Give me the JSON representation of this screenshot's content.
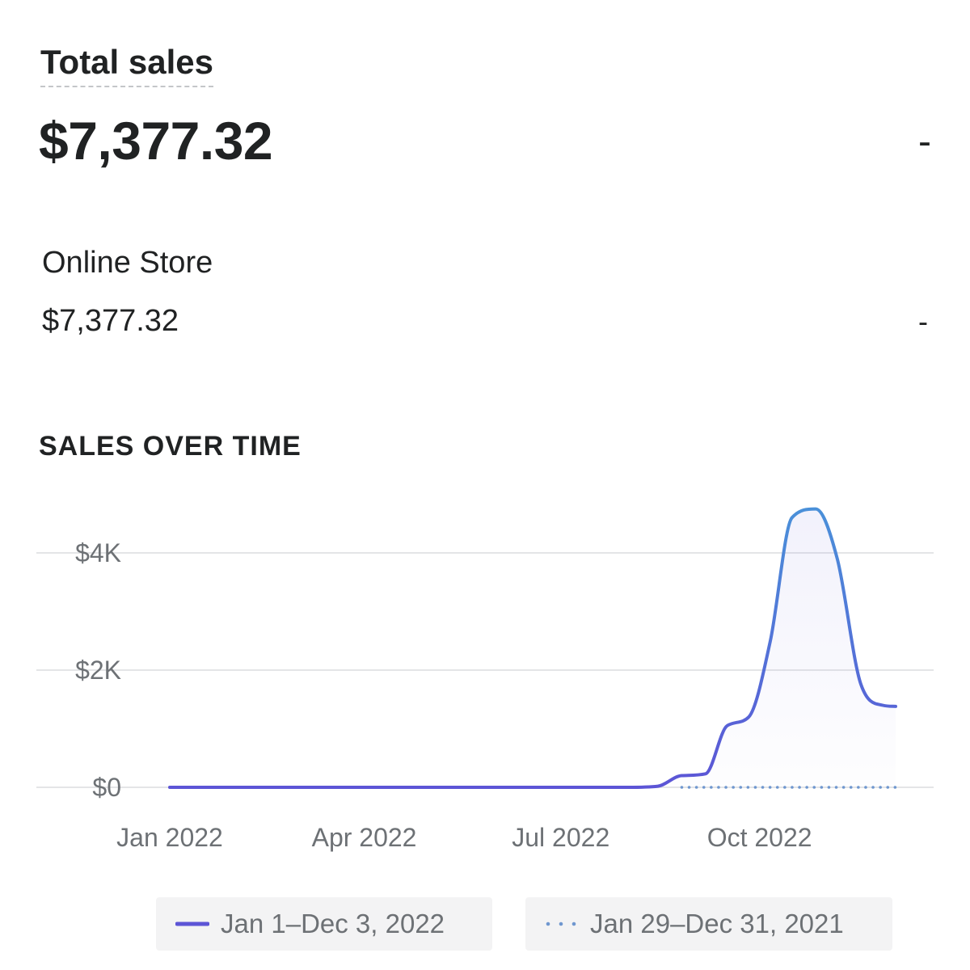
{
  "header": {
    "title": "Total sales",
    "total_value": "$7,377.32",
    "total_change": "-"
  },
  "breakdown": {
    "channel_name": "Online Store",
    "channel_value": "$7,377.32",
    "channel_change": "-"
  },
  "section_title": "SALES OVER TIME",
  "colors": {
    "current_start": "#5c55d6",
    "current_end": "#4a90d9",
    "previous": "#6f97cf",
    "grid": "#e4e5e7",
    "text_muted": "#6d7175"
  },
  "chart_data": {
    "type": "line",
    "title": "SALES OVER TIME",
    "xlabel": "",
    "ylabel": "",
    "x_tick_labels": [
      "Jan 2022",
      "Apr 2022",
      "Jul 2022",
      "Oct 2022"
    ],
    "y_tick_labels": [
      "$0",
      "$2K",
      "$4K"
    ],
    "ylim": [
      0,
      5000
    ],
    "grid": true,
    "legend_position": "bottom",
    "series": [
      {
        "name": "Jan 1–Dec 3, 2022",
        "style": "solid",
        "x": [
          "2022-01-01",
          "2022-01-15",
          "2022-02-01",
          "2022-03-01",
          "2022-04-01",
          "2022-05-01",
          "2022-06-01",
          "2022-07-01",
          "2022-08-01",
          "2022-08-15",
          "2022-08-26",
          "2022-09-06",
          "2022-09-16",
          "2022-09-26",
          "2022-10-06",
          "2022-10-16",
          "2022-10-27",
          "2022-11-06",
          "2022-11-17",
          "2022-11-27",
          "2022-12-03"
        ],
        "values": [
          0,
          0,
          0,
          0,
          0,
          0,
          0,
          0,
          0,
          20,
          200,
          230,
          1050,
          1200,
          2500,
          4600,
          4750,
          3900,
          1750,
          1400,
          1380
        ]
      },
      {
        "name": "Jan 29–Dec 31, 2021",
        "style": "dotted",
        "x": [
          "2022-08-26",
          "2022-12-03"
        ],
        "values": [
          0,
          0
        ]
      }
    ]
  }
}
